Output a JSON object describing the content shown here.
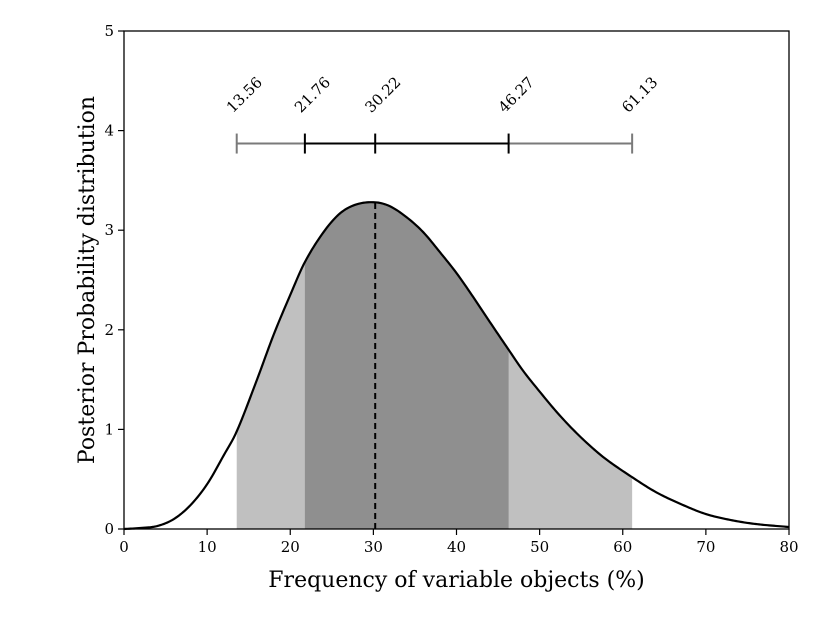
{
  "chart_data": {
    "type": "area",
    "title": "",
    "xlabel": "Frequency of variable objects (%)",
    "ylabel": "Posterior Probability distribution",
    "xlim": [
      0,
      80
    ],
    "ylim": [
      0,
      5
    ],
    "xticks": [
      0,
      10,
      20,
      30,
      40,
      50,
      60,
      70,
      80
    ],
    "yticks": [
      0,
      1,
      2,
      3,
      4,
      5
    ],
    "grid": false,
    "legend": "none",
    "curve": {
      "x": [
        0,
        2,
        4,
        6,
        8,
        10,
        12,
        13.56,
        16,
        18,
        20,
        21.76,
        24,
        26,
        28,
        30.22,
        32,
        34,
        36,
        38,
        40,
        42,
        44,
        46.27,
        48,
        50,
        52,
        54,
        56,
        58,
        61.13,
        64,
        67,
        70,
        73,
        76,
        80
      ],
      "y": [
        0,
        0.01,
        0.03,
        0.1,
        0.24,
        0.45,
        0.74,
        0.98,
        1.5,
        1.95,
        2.35,
        2.68,
        2.98,
        3.17,
        3.26,
        3.28,
        3.24,
        3.13,
        2.98,
        2.78,
        2.57,
        2.33,
        2.08,
        1.8,
        1.59,
        1.38,
        1.18,
        1.0,
        0.84,
        0.7,
        0.52,
        0.37,
        0.25,
        0.15,
        0.09,
        0.05,
        0.02
      ]
    },
    "mode": 30.22,
    "intervals": {
      "outer": [
        13.56,
        61.13
      ],
      "inner": [
        21.76,
        46.27
      ]
    },
    "error_bar": {
      "y": 3.87,
      "labels": [
        "13.56",
        "21.76",
        "30.22",
        "46.27",
        "61.13"
      ],
      "positions": [
        13.56,
        21.76,
        30.22,
        46.27,
        61.13
      ]
    },
    "colors": {
      "outer_fill": "#c0c0c0",
      "inner_fill": "#8f8f8f",
      "curve": "#000000",
      "outer_bar": "#7a7a7a",
      "inner_bar": "#000000"
    }
  }
}
